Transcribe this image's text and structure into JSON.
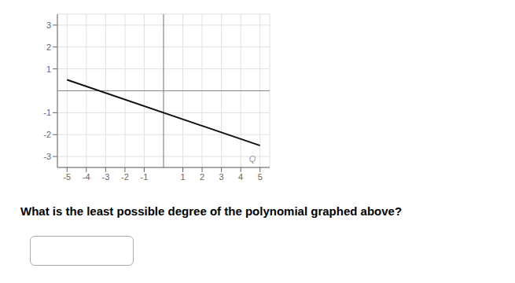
{
  "chart_data": {
    "type": "line",
    "x": [
      -5,
      5
    ],
    "values": [
      0.5,
      -2.5
    ],
    "color": "#111111",
    "xlim": [
      -5.5,
      5.5
    ],
    "ylim": [
      -3.5,
      3.5
    ],
    "xticks": [
      -5,
      -4,
      -3,
      -2,
      -1,
      1,
      2,
      3,
      4,
      5
    ],
    "yticks": [
      -3,
      -2,
      -1,
      1,
      2,
      3
    ],
    "grid": true,
    "annotations": [
      {
        "text": "Q",
        "x": 4.6,
        "y": -3.1
      },
      {
        "text": "What is the least possible degree of the polynomial graphed above?"
      }
    ]
  }
}
